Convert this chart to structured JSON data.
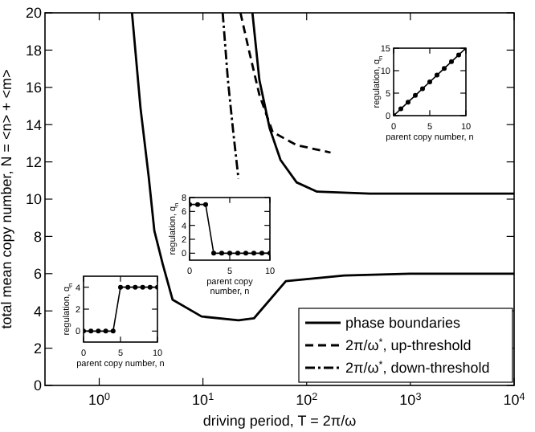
{
  "chart_data": [
    {
      "type": "line",
      "xlabel": "driving period, T = 2π/ω",
      "ylabel": "total mean copy number, N = <n> + <m>",
      "log": "x",
      "xlim": [
        0.3,
        10000
      ],
      "ylim": [
        0,
        20
      ],
      "xticks": [
        {
          "value": 1,
          "label": "10$^{0}$"
        },
        {
          "value": 10,
          "label": "10$^{1}$"
        },
        {
          "value": 100,
          "label": "10$^{2}$"
        },
        {
          "value": 1000,
          "label": "10$^{3}$"
        },
        {
          "value": 10000,
          "label": "10$^{4}$"
        }
      ],
      "yticks": [
        0,
        2,
        4,
        6,
        8,
        10,
        12,
        14,
        16,
        18,
        20
      ],
      "legend": "bottom right",
      "series": [
        {
          "name": "phase boundaries",
          "color": "#000000",
          "line_style": "solid",
          "x": [
            2.07,
            2.5,
            3.0,
            3.4,
            4.1,
            5.1,
            9.7,
            22,
            31,
            63,
            229,
            1000,
            10000
          ],
          "values": [
            20,
            14.9,
            11.2,
            8.3,
            6.5,
            4.6,
            3.7,
            3.5,
            3.6,
            5.6,
            5.9,
            6.0,
            6.0
          ]
        },
        {
          "color": "#000000",
          "line_style": "solid",
          "x": [
            30,
            35,
            44,
            56,
            80,
            126,
            405,
            10000
          ],
          "values": [
            20,
            16.4,
            13.8,
            12.1,
            10.9,
            10.4,
            10.3,
            10.3
          ]
        },
        {
          "name": "2π/ω$^{*}$, up-threshold",
          "color": "#000000",
          "line_style": "dashed",
          "x": [
            23,
            28,
            35,
            47,
            80,
            170
          ],
          "values": [
            20,
            17.9,
            15.6,
            13.6,
            12.9,
            12.5
          ]
        },
        {
          "name": "2π/ω$^{*}$, down-threshold",
          "color": "#000000",
          "line_style": "dashdot",
          "x": [
            15.5,
            17.4,
            19.6,
            22
          ],
          "values": [
            20,
            16.4,
            13.6,
            11.1
          ]
        }
      ]
    },
    {
      "type": "line",
      "xlabel": "parent copy number, n",
      "ylabel": "regulation, q$_{n}$",
      "xlim": [
        0,
        10
      ],
      "ylim": [
        -1,
        5
      ],
      "xticks": [
        0,
        5,
        10
      ],
      "yticks": [
        0,
        2,
        4
      ],
      "marker": "circle",
      "series": [
        {
          "color": "#000000",
          "x": [
            0,
            1,
            2,
            3,
            4,
            5,
            6,
            7,
            8,
            9,
            10
          ],
          "values": [
            0,
            0,
            0,
            0,
            0,
            4,
            4,
            4,
            4,
            4,
            4
          ]
        }
      ]
    },
    {
      "type": "line",
      "xlabel": "parent copy number, n",
      "ylabel": "regulation, q$_{n}$",
      "xlim": [
        0,
        10
      ],
      "ylim": [
        -1,
        8
      ],
      "xticks": [
        0,
        5,
        10
      ],
      "yticks": [
        0,
        2,
        4,
        6,
        8
      ],
      "marker": "circle",
      "series": [
        {
          "color": "#000000",
          "x": [
            0,
            1,
            2,
            3,
            4,
            5,
            6,
            7,
            8,
            9,
            10
          ],
          "values": [
            7,
            7,
            7,
            0,
            0,
            0,
            0,
            0,
            0,
            0,
            0
          ]
        }
      ]
    },
    {
      "type": "line",
      "xlabel": "parent copy number, n",
      "ylabel": "regulation, q$_{n}$",
      "xlim": [
        0,
        10
      ],
      "ylim": [
        0,
        15
      ],
      "xticks": [
        0,
        5,
        10
      ],
      "yticks": [
        0,
        5,
        10,
        15
      ],
      "marker": "circle",
      "series": [
        {
          "color": "#000000",
          "x": [
            0,
            1,
            2,
            3,
            4,
            5,
            6,
            7,
            8,
            9,
            10
          ],
          "values": [
            0,
            1.5,
            3,
            4.5,
            6,
            7.5,
            9,
            10.5,
            12,
            13.5,
            15
          ]
        }
      ]
    }
  ]
}
